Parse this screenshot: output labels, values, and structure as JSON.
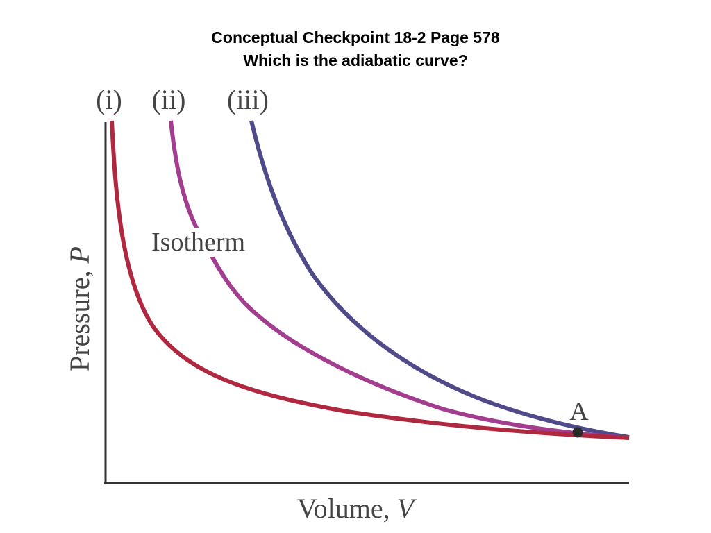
{
  "slide": {
    "title_line1": "Conceptual Checkpoint 18-2 Page 578",
    "title_line2": "Which is the adiabatic curve?"
  },
  "diagram": {
    "curve_labels": [
      "(i)",
      "(ii)",
      "(iii)"
    ],
    "annotation": "Isotherm",
    "point_label": "A",
    "axis_y_label": "Pressure, ",
    "axis_y_var": "P",
    "axis_x_label": "Volume, ",
    "axis_x_var": "V",
    "colors": {
      "curve_i": "#b0283f",
      "curve_ii": "#a23d8f",
      "curve_iii": "#4f4a8a",
      "axis": "#333333",
      "point": "#2a2a2a"
    }
  }
}
